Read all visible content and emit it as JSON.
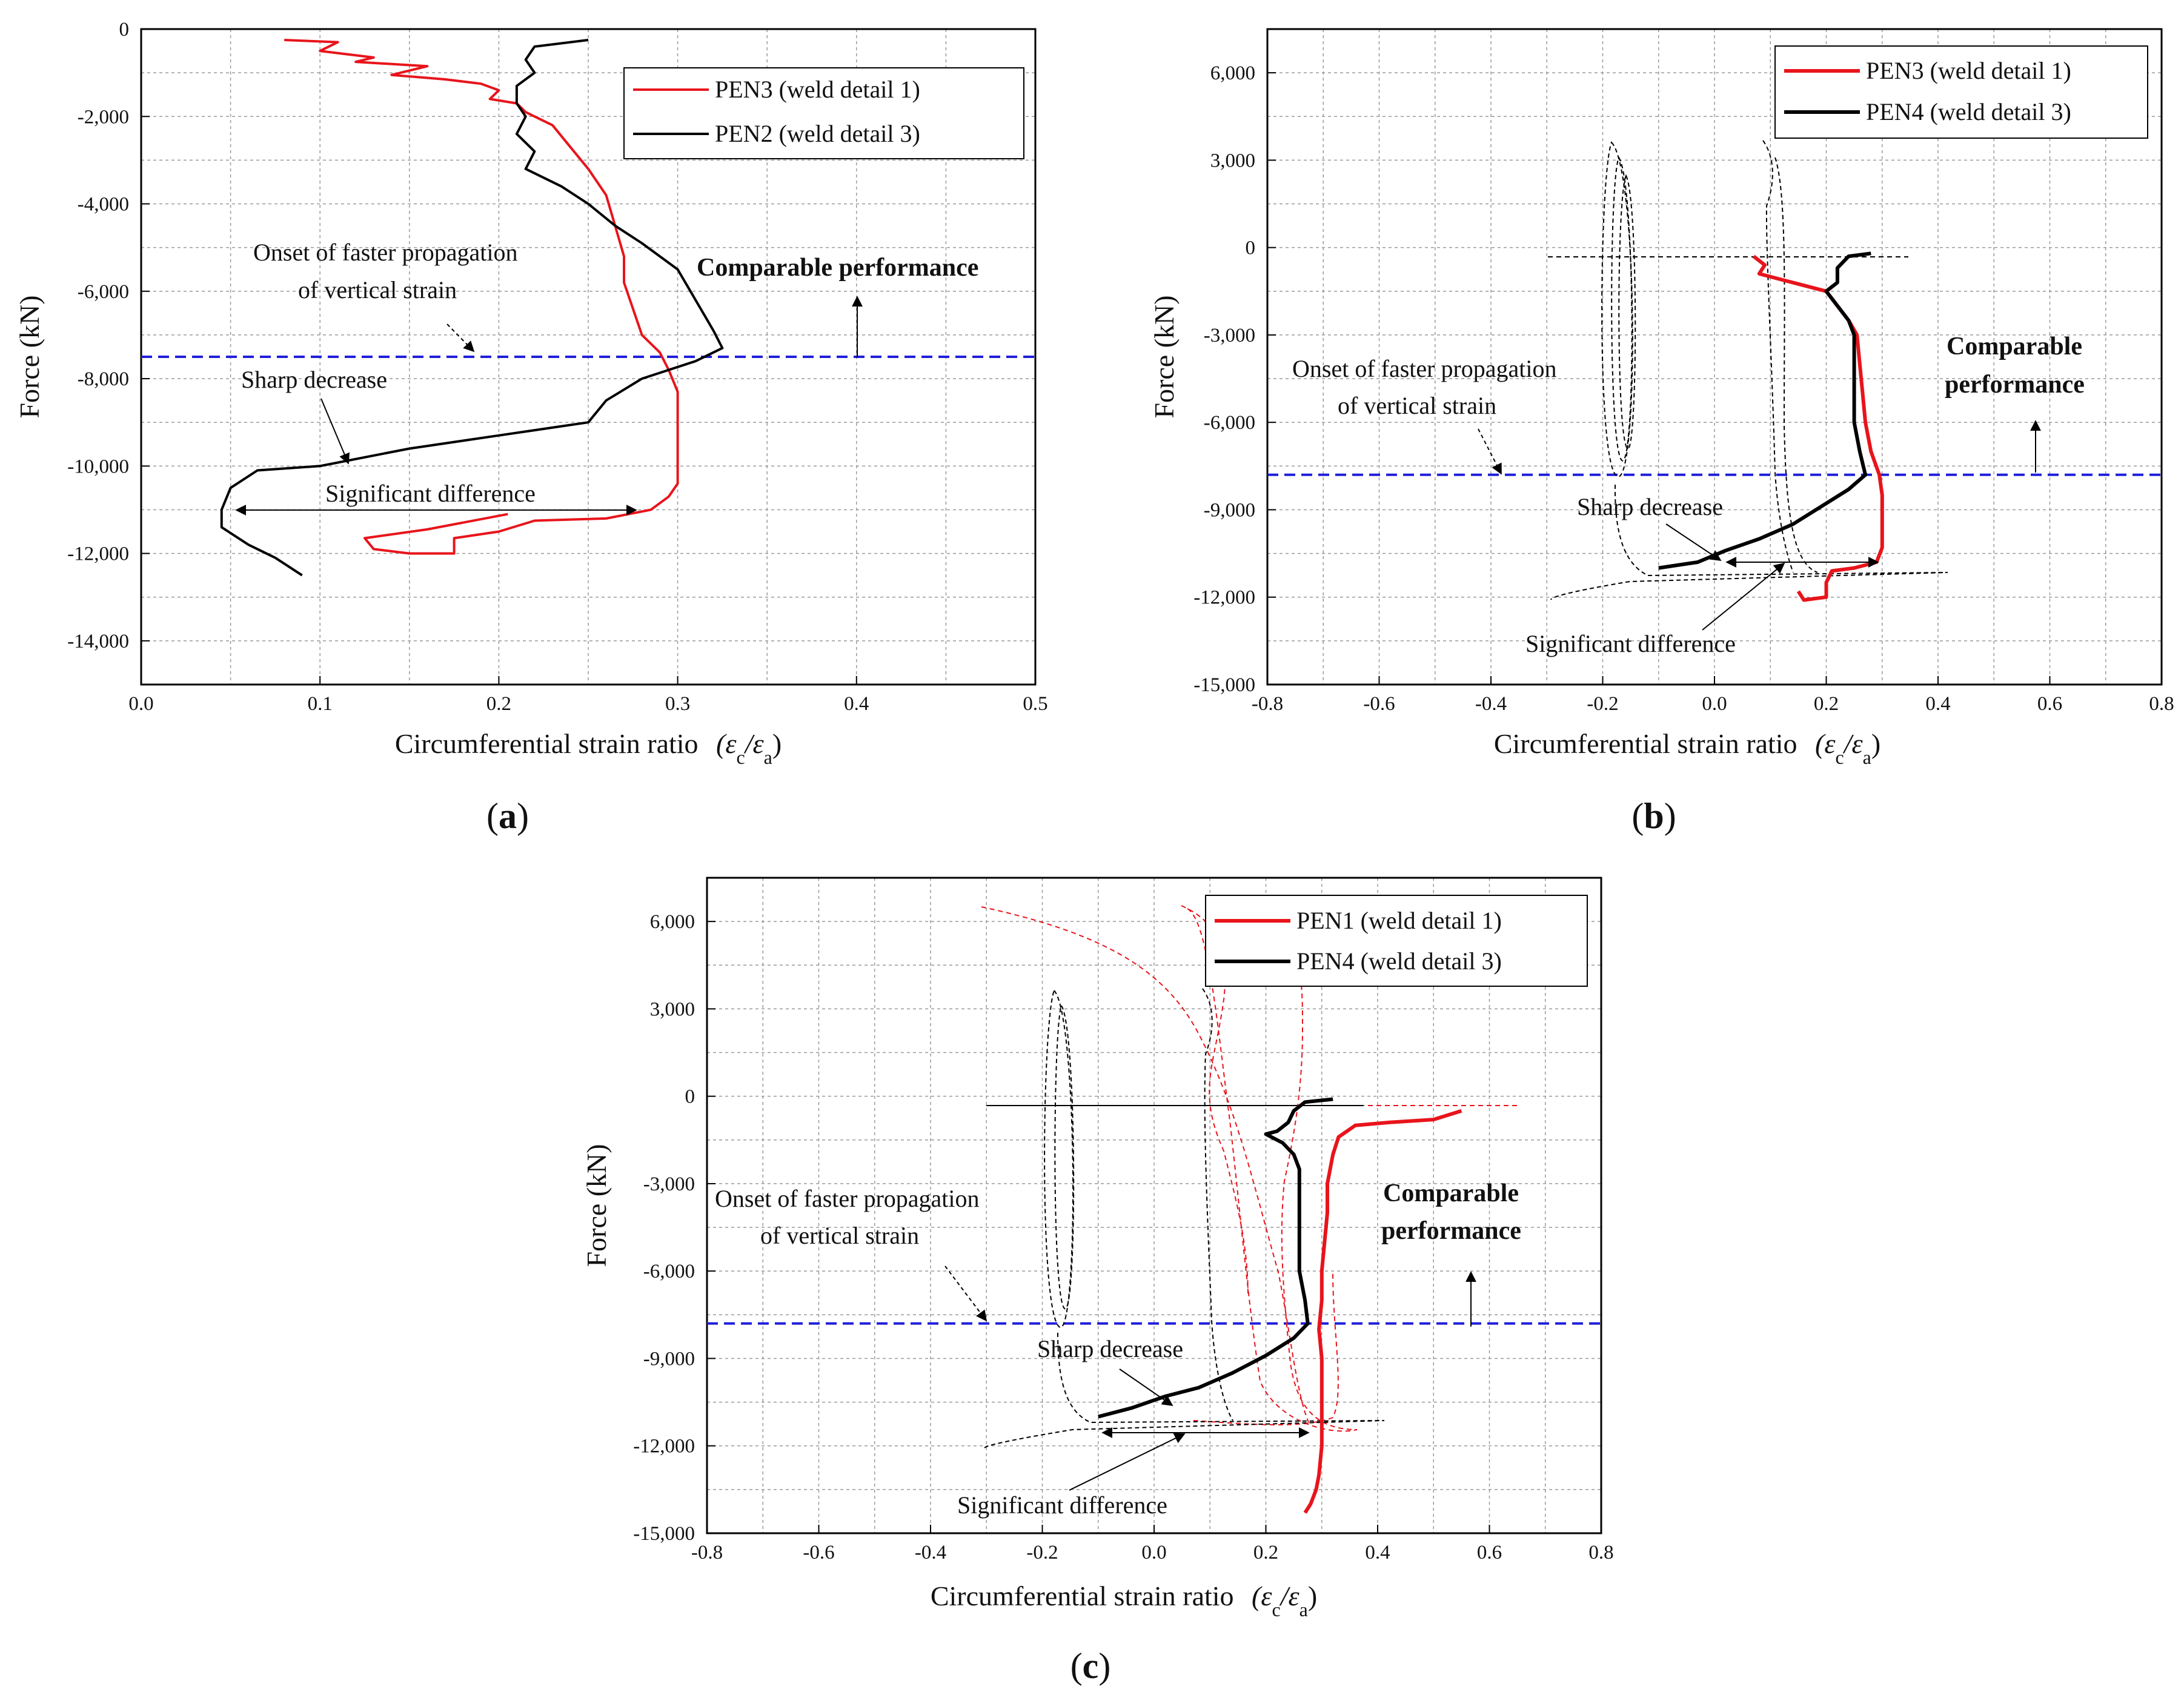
{
  "figure": {
    "panels": [
      {
        "label_open": "(",
        "label_letter": "a",
        "label_close": ")"
      },
      {
        "label_open": "(",
        "label_letter": "b",
        "label_close": ")"
      },
      {
        "label_open": "(",
        "label_letter": "c",
        "label_close": ")"
      }
    ]
  },
  "colors": {
    "red": "#e8141b",
    "black": "#000000",
    "blue": "#1f1fdb",
    "grid": "#9a9a9a"
  },
  "chart_data": [
    {
      "type": "line",
      "panel": "a",
      "title": "",
      "xlabel": "Circumferential strain ratio",
      "xlabel_math": [
        "(ε",
        "c",
        "/ε",
        "a",
        ")"
      ],
      "ylabel": "Force (kN)",
      "xlim": [
        0.0,
        0.5
      ],
      "ylim": [
        -15000,
        0
      ],
      "xticks": [
        0.0,
        0.1,
        0.2,
        0.3,
        0.4,
        0.5
      ],
      "xtick_labels": [
        "0.0",
        "0.1",
        "0.2",
        "0.3",
        "0.4",
        "0.5"
      ],
      "yticks": [
        0,
        -2000,
        -4000,
        -6000,
        -8000,
        -10000,
        -12000,
        -14000
      ],
      "ytick_labels": [
        "0",
        "-2,000",
        "-4,000",
        "-6,000",
        "-8,000",
        "-10,000",
        "-12,000",
        "-14,000"
      ],
      "grid": true,
      "legend_position": "top-right",
      "series": [
        {
          "name": "PEN3 (weld detail 1)",
          "color": "#e8141b",
          "style": "solid",
          "points": [
            [
              0.08,
              -250
            ],
            [
              0.11,
              -300
            ],
            [
              0.1,
              -500
            ],
            [
              0.13,
              -650
            ],
            [
              0.12,
              -750
            ],
            [
              0.16,
              -850
            ],
            [
              0.14,
              -1050
            ],
            [
              0.17,
              -1150
            ],
            [
              0.19,
              -1250
            ],
            [
              0.2,
              -1400
            ],
            [
              0.195,
              -1600
            ],
            [
              0.21,
              -1700
            ],
            [
              0.215,
              -1900
            ],
            [
              0.23,
              -2200
            ],
            [
              0.24,
              -2700
            ],
            [
              0.25,
              -3200
            ],
            [
              0.26,
              -3800
            ],
            [
              0.265,
              -4500
            ],
            [
              0.27,
              -5200
            ],
            [
              0.27,
              -5800
            ],
            [
              0.275,
              -6400
            ],
            [
              0.28,
              -7000
            ],
            [
              0.29,
              -7400
            ],
            [
              0.295,
              -7800
            ],
            [
              0.3,
              -8300
            ],
            [
              0.3,
              -9000
            ],
            [
              0.3,
              -9800
            ],
            [
              0.3,
              -10400
            ],
            [
              0.295,
              -10700
            ],
            [
              0.285,
              -11000
            ],
            [
              0.26,
              -11200
            ],
            [
              0.22,
              -11250
            ],
            [
              0.2,
              -11500
            ],
            [
              0.175,
              -11650
            ],
            [
              0.175,
              -12000
            ],
            [
              0.15,
              -12000
            ],
            [
              0.13,
              -11900
            ],
            [
              0.125,
              -11650
            ],
            [
              0.16,
              -11450
            ],
            [
              0.205,
              -11100
            ]
          ]
        },
        {
          "name": "PEN2 (weld detail 3)",
          "color": "#000000",
          "style": "solid",
          "points": [
            [
              0.25,
              -250
            ],
            [
              0.22,
              -400
            ],
            [
              0.215,
              -700
            ],
            [
              0.22,
              -1000
            ],
            [
              0.21,
              -1300
            ],
            [
              0.21,
              -1700
            ],
            [
              0.215,
              -2000
            ],
            [
              0.21,
              -2400
            ],
            [
              0.22,
              -2800
            ],
            [
              0.215,
              -3200
            ],
            [
              0.235,
              -3600
            ],
            [
              0.25,
              -4000
            ],
            [
              0.265,
              -4500
            ],
            [
              0.28,
              -4900
            ],
            [
              0.3,
              -5500
            ],
            [
              0.31,
              -6200
            ],
            [
              0.32,
              -6900
            ],
            [
              0.325,
              -7300
            ],
            [
              0.31,
              -7600
            ],
            [
              0.28,
              -8000
            ],
            [
              0.26,
              -8500
            ],
            [
              0.25,
              -9000
            ],
            [
              0.2,
              -9300
            ],
            [
              0.15,
              -9600
            ],
            [
              0.1,
              -10000
            ],
            [
              0.065,
              -10100
            ],
            [
              0.05,
              -10500
            ],
            [
              0.045,
              -11000
            ],
            [
              0.045,
              -11400
            ],
            [
              0.06,
              -11800
            ],
            [
              0.075,
              -12100
            ],
            [
              0.09,
              -12500
            ]
          ]
        }
      ],
      "annotations": [
        {
          "text": "Comparable performance",
          "bold": true
        },
        {
          "text": "Onset of faster propagation"
        },
        {
          "text": "of vertical strain"
        },
        {
          "text": "Sharp decrease"
        },
        {
          "text": "Significant difference"
        }
      ],
      "reference_line": {
        "y": -7500,
        "color": "#1f1fdb",
        "style": "dashed"
      }
    },
    {
      "type": "line",
      "panel": "b",
      "title": "",
      "xlabel": "Circumferential strain ratio",
      "xlabel_math": [
        "(ε",
        "c",
        "/ε",
        "a",
        ")"
      ],
      "ylabel": "Force (kN)",
      "xlim": [
        -0.8,
        0.8
      ],
      "ylim": [
        -15000,
        7500
      ],
      "xticks": [
        -0.8,
        -0.6,
        -0.4,
        -0.2,
        0.0,
        0.2,
        0.4,
        0.6,
        0.8
      ],
      "xtick_labels": [
        "-0.8",
        "-0.6",
        "-0.4",
        "-0.2",
        "0.0",
        "0.2",
        "0.4",
        "0.6",
        "0.8"
      ],
      "yticks": [
        6000,
        3000,
        0,
        -3000,
        -6000,
        -9000,
        -12000,
        -15000
      ],
      "ytick_labels": [
        "6,000",
        "3,000",
        "0",
        "-3,000",
        "-6,000",
        "-9,000",
        "-12,000",
        "-15,000"
      ],
      "grid": true,
      "legend_position": "top-right",
      "series": [
        {
          "name": "PEN3 (weld detail 1)",
          "color": "#e8141b",
          "style": "solid",
          "points": [
            [
              0.07,
              -300
            ],
            [
              0.09,
              -600
            ],
            [
              0.08,
              -900
            ],
            [
              0.12,
              -1100
            ],
            [
              0.16,
              -1300
            ],
            [
              0.2,
              -1500
            ],
            [
              0.22,
              -2000
            ],
            [
              0.24,
              -2500
            ],
            [
              0.255,
              -3000
            ],
            [
              0.26,
              -4000
            ],
            [
              0.265,
              -5000
            ],
            [
              0.27,
              -6000
            ],
            [
              0.28,
              -7000
            ],
            [
              0.295,
              -7800
            ],
            [
              0.3,
              -8500
            ],
            [
              0.3,
              -9500
            ],
            [
              0.3,
              -10300
            ],
            [
              0.29,
              -10800
            ],
            [
              0.25,
              -11000
            ],
            [
              0.21,
              -11100
            ],
            [
              0.2,
              -11500
            ],
            [
              0.2,
              -12000
            ],
            [
              0.16,
              -12100
            ],
            [
              0.15,
              -11800
            ]
          ]
        },
        {
          "name": "PEN4 (weld detail 3)",
          "color": "#000000",
          "style": "solid",
          "points": [
            [
              0.28,
              -200
            ],
            [
              0.24,
              -300
            ],
            [
              0.22,
              -700
            ],
            [
              0.22,
              -1200
            ],
            [
              0.2,
              -1500
            ],
            [
              0.22,
              -2000
            ],
            [
              0.24,
              -2500
            ],
            [
              0.25,
              -3000
            ],
            [
              0.25,
              -4000
            ],
            [
              0.25,
              -5000
            ],
            [
              0.25,
              -6000
            ],
            [
              0.26,
              -7000
            ],
            [
              0.27,
              -7800
            ],
            [
              0.24,
              -8300
            ],
            [
              0.19,
              -8900
            ],
            [
              0.14,
              -9500
            ],
            [
              0.08,
              -10000
            ],
            [
              0.02,
              -10400
            ],
            [
              -0.03,
              -10800
            ],
            [
              -0.1,
              -11000
            ]
          ]
        }
      ],
      "annotations": [
        {
          "text": "Comparable"
        },
        {
          "text": "performance"
        },
        {
          "text": "Onset of faster propagation"
        },
        {
          "text": "of vertical strain"
        },
        {
          "text": "Sharp decrease"
        },
        {
          "text": "Significant difference"
        }
      ],
      "reference_line": {
        "y": -7800,
        "color": "#1f1fdb",
        "style": "dashed"
      }
    },
    {
      "type": "line",
      "panel": "c",
      "title": "",
      "xlabel": "Circumferential strain ratio",
      "xlabel_math": [
        "(ε",
        "c",
        "/ε",
        "a",
        ")"
      ],
      "ylabel": "Force (kN)",
      "xlim": [
        -0.8,
        0.8
      ],
      "ylim": [
        -15000,
        7500
      ],
      "xticks": [
        -0.8,
        -0.6,
        -0.4,
        -0.2,
        0.0,
        0.2,
        0.4,
        0.6,
        0.8
      ],
      "xtick_labels": [
        "-0.8",
        "-0.6",
        "-0.4",
        "-0.2",
        "0.0",
        "0.2",
        "0.4",
        "0.6",
        "0.8"
      ],
      "yticks": [
        6000,
        3000,
        0,
        -3000,
        -6000,
        -9000,
        -12000,
        -15000
      ],
      "ytick_labels": [
        "6,000",
        "3,000",
        "0",
        "-3,000",
        "-6,000",
        "-9,000",
        "-12,000",
        "-15,000"
      ],
      "grid": true,
      "legend_position": "top-right",
      "series": [
        {
          "name": "PEN1 (weld detail 1)",
          "color": "#e8141b",
          "style": "solid",
          "points": [
            [
              0.55,
              -500
            ],
            [
              0.5,
              -800
            ],
            [
              0.42,
              -900
            ],
            [
              0.36,
              -1000
            ],
            [
              0.33,
              -1400
            ],
            [
              0.32,
              -2000
            ],
            [
              0.31,
              -3000
            ],
            [
              0.31,
              -4000
            ],
            [
              0.305,
              -5000
            ],
            [
              0.3,
              -6000
            ],
            [
              0.3,
              -7000
            ],
            [
              0.295,
              -8000
            ],
            [
              0.3,
              -9000
            ],
            [
              0.3,
              -10000
            ],
            [
              0.3,
              -11000
            ],
            [
              0.3,
              -12000
            ],
            [
              0.295,
              -13000
            ],
            [
              0.29,
              -13500
            ],
            [
              0.28,
              -14000
            ],
            [
              0.27,
              -14300
            ]
          ]
        },
        {
          "name": "PEN4 (weld detail 3)",
          "color": "#000000",
          "style": "solid",
          "points": [
            [
              0.32,
              -100
            ],
            [
              0.27,
              -200
            ],
            [
              0.25,
              -500
            ],
            [
              0.24,
              -900
            ],
            [
              0.22,
              -1200
            ],
            [
              0.2,
              -1300
            ],
            [
              0.23,
              -1600
            ],
            [
              0.25,
              -2000
            ],
            [
              0.26,
              -2500
            ],
            [
              0.26,
              -3000
            ],
            [
              0.26,
              -4000
            ],
            [
              0.26,
              -5000
            ],
            [
              0.26,
              -6000
            ],
            [
              0.27,
              -7000
            ],
            [
              0.275,
              -7800
            ],
            [
              0.25,
              -8300
            ],
            [
              0.2,
              -8900
            ],
            [
              0.14,
              -9500
            ],
            [
              0.08,
              -10000
            ],
            [
              0.02,
              -10300
            ],
            [
              -0.04,
              -10700
            ],
            [
              -0.1,
              -11000
            ]
          ]
        }
      ],
      "annotations": [
        {
          "text": "Comparable"
        },
        {
          "text": "performance"
        },
        {
          "text": "Onset of faster propagation"
        },
        {
          "text": "of vertical strain"
        },
        {
          "text": "Sharp decrease"
        },
        {
          "text": "Significant difference"
        }
      ],
      "reference_line": {
        "y": -7800,
        "color": "#1f1fdb",
        "style": "dashed"
      }
    }
  ]
}
